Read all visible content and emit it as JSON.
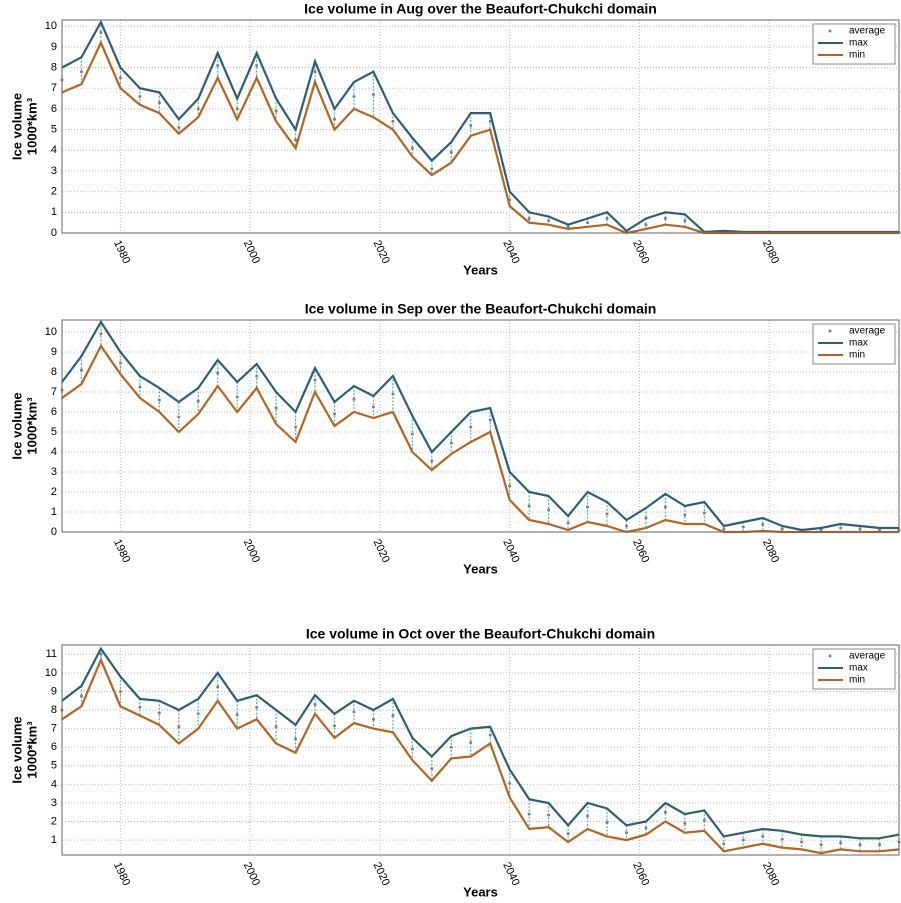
{
  "chart_data": [
    {
      "type": "line",
      "title": "Ice volume in Aug over the Beaufort-Chukchi domain",
      "xlabel": "Years",
      "ylabel": [
        "Ice volume",
        "1000*km³"
      ],
      "x": [
        1971,
        1974,
        1977,
        1980,
        1983,
        1986,
        1989,
        1992,
        1995,
        1998,
        2001,
        2004,
        2007,
        2010,
        2013,
        2016,
        2019,
        2022,
        2025,
        2028,
        2031,
        2034,
        2037,
        2040,
        2043,
        2046,
        2049,
        2052,
        2055,
        2058,
        2061,
        2064,
        2067,
        2070,
        2073,
        2076,
        2079,
        2082,
        2085,
        2088,
        2091,
        2094,
        2097,
        2100
      ],
      "series": [
        {
          "name": "average",
          "color": "#7f7f7f",
          "values": [
            7.4,
            7.8,
            9.7,
            7.5,
            6.6,
            6.3,
            5.1,
            6.0,
            8.1,
            6.0,
            8.1,
            5.9,
            4.5,
            7.8,
            5.5,
            6.6,
            6.7,
            5.4,
            4.1,
            3.1,
            3.9,
            5.2,
            5.4,
            1.6,
            0.7,
            0.6,
            0.3,
            0.5,
            0.7,
            0.05,
            0.4,
            0.7,
            0.6,
            0.02,
            0.05,
            0.02,
            0.02,
            0.02,
            0.02,
            0.02,
            0.02,
            0.02,
            0.02,
            0.02
          ]
        },
        {
          "name": "max",
          "color": "#2e5f7a",
          "values": [
            8.0,
            8.5,
            10.2,
            8.0,
            7.0,
            6.8,
            5.5,
            6.5,
            8.7,
            6.5,
            8.7,
            6.5,
            5.0,
            8.3,
            6.0,
            7.3,
            7.8,
            5.8,
            4.6,
            3.5,
            4.4,
            5.8,
            5.8,
            2.0,
            1.0,
            0.8,
            0.4,
            0.7,
            1.0,
            0.1,
            0.7,
            1.0,
            0.9,
            0.05,
            0.1,
            0.05,
            0.05,
            0.05,
            0.05,
            0.05,
            0.05,
            0.05,
            0.05,
            0.05
          ]
        },
        {
          "name": "min",
          "color": "#b5651d",
          "values": [
            6.8,
            7.2,
            9.2,
            7.0,
            6.2,
            5.8,
            4.8,
            5.6,
            7.5,
            5.5,
            7.5,
            5.4,
            4.1,
            7.3,
            5.0,
            6.0,
            5.6,
            5.0,
            3.7,
            2.8,
            3.4,
            4.7,
            5.0,
            1.3,
            0.5,
            0.4,
            0.2,
            0.3,
            0.4,
            0,
            0.2,
            0.4,
            0.3,
            0,
            0,
            0,
            0,
            0,
            0,
            0,
            0,
            0,
            0,
            0
          ]
        }
      ],
      "xlim": [
        1971,
        2100
      ],
      "xticks": [
        1980,
        2000,
        2020,
        2040,
        2060,
        2080
      ],
      "ylim": [
        0,
        10.3
      ],
      "yticks": [
        0,
        1,
        2,
        3,
        4,
        5,
        6,
        7,
        8,
        9,
        10
      ],
      "grid": true,
      "legend": "upper right"
    },
    {
      "type": "line",
      "title": "Ice volume in Sep over the Beaufort-Chukchi domain",
      "xlabel": "Years",
      "ylabel": [
        "Ice volume",
        "1000*km³"
      ],
      "x": [
        1971,
        1974,
        1977,
        1980,
        1983,
        1986,
        1989,
        1992,
        1995,
        1998,
        2001,
        2004,
        2007,
        2010,
        2013,
        2016,
        2019,
        2022,
        2025,
        2028,
        2031,
        2034,
        2037,
        2040,
        2043,
        2046,
        2049,
        2052,
        2055,
        2058,
        2061,
        2064,
        2067,
        2070,
        2073,
        2076,
        2079,
        2082,
        2085,
        2088,
        2091,
        2094,
        2097,
        2100
      ],
      "series": [
        {
          "name": "average",
          "color": "#7f7f7f",
          "values": [
            7.1,
            8.1,
            9.9,
            8.45,
            7.25,
            6.6,
            5.75,
            6.55,
            7.95,
            6.75,
            7.8,
            6.2,
            5.25,
            7.6,
            5.9,
            6.65,
            6.25,
            6.9,
            4.9,
            3.55,
            4.45,
            5.25,
            5.6,
            2.3,
            1.3,
            1.1,
            0.45,
            1.25,
            0.9,
            0.3,
            0.7,
            1.25,
            0.85,
            0.95,
            0.15,
            0.25,
            0.38,
            0.15,
            0.05,
            0.1,
            0.2,
            0.15,
            0.1,
            0.1
          ]
        },
        {
          "name": "max",
          "color": "#2e5f7a",
          "values": [
            7.5,
            8.8,
            10.5,
            9.0,
            7.8,
            7.2,
            6.5,
            7.2,
            8.6,
            7.5,
            8.4,
            7.0,
            6.0,
            8.2,
            6.5,
            7.3,
            6.8,
            7.8,
            5.8,
            4.0,
            5.0,
            6.0,
            6.2,
            3.0,
            2.0,
            1.8,
            0.8,
            2.0,
            1.5,
            0.6,
            1.2,
            1.9,
            1.3,
            1.5,
            0.3,
            0.5,
            0.7,
            0.3,
            0.1,
            0.2,
            0.4,
            0.3,
            0.2,
            0.2
          ]
        },
        {
          "name": "min",
          "color": "#b5651d",
          "values": [
            6.7,
            7.4,
            9.3,
            7.9,
            6.7,
            6.0,
            5.0,
            5.9,
            7.3,
            6.0,
            7.2,
            5.4,
            4.5,
            7.0,
            5.3,
            6.0,
            5.7,
            6.0,
            4.0,
            3.1,
            3.9,
            4.5,
            5.0,
            1.6,
            0.6,
            0.4,
            0.1,
            0.5,
            0.3,
            0,
            0.2,
            0.6,
            0.4,
            0.4,
            0,
            0,
            0.05,
            0,
            0,
            0,
            0,
            0,
            0,
            0
          ]
        }
      ],
      "xlim": [
        1971,
        2100
      ],
      "xticks": [
        1980,
        2000,
        2020,
        2040,
        2060,
        2080
      ],
      "ylim": [
        0,
        10.6
      ],
      "yticks": [
        0,
        1,
        2,
        3,
        4,
        5,
        6,
        7,
        8,
        9,
        10
      ],
      "grid": true,
      "legend": "upper right"
    },
    {
      "type": "line",
      "title": "Ice volume in Oct over the Beaufort-Chukchi domain",
      "xlabel": "Years",
      "ylabel": [
        "Ice volume",
        "1000*km³"
      ],
      "x": [
        1971,
        1974,
        1977,
        1980,
        1983,
        1986,
        1989,
        1992,
        1995,
        1998,
        2001,
        2004,
        2007,
        2010,
        2013,
        2016,
        2019,
        2022,
        2025,
        2028,
        2031,
        2034,
        2037,
        2040,
        2043,
        2046,
        2049,
        2052,
        2055,
        2058,
        2061,
        2064,
        2067,
        2070,
        2073,
        2076,
        2079,
        2082,
        2085,
        2088,
        2091,
        2094,
        2097,
        2100
      ],
      "series": [
        {
          "name": "average",
          "color": "#7f7f7f",
          "values": [
            8.0,
            8.75,
            11.0,
            9.0,
            8.15,
            7.85,
            7.1,
            7.8,
            9.25,
            7.75,
            8.15,
            7.1,
            6.45,
            8.3,
            7.15,
            7.9,
            7.5,
            7.7,
            5.9,
            4.85,
            6.0,
            6.25,
            6.65,
            4.05,
            2.4,
            2.35,
            1.35,
            2.3,
            1.95,
            1.4,
            1.65,
            2.5,
            1.9,
            2.05,
            0.8,
            1.0,
            1.2,
            1.05,
            0.9,
            0.75,
            0.85,
            0.75,
            0.75,
            0.9
          ]
        },
        {
          "name": "max",
          "color": "#2e5f7a",
          "values": [
            8.5,
            9.3,
            11.3,
            9.8,
            8.6,
            8.5,
            8.0,
            8.6,
            10.0,
            8.5,
            8.8,
            8.0,
            7.2,
            8.8,
            7.8,
            8.5,
            8.0,
            8.6,
            6.5,
            5.5,
            6.6,
            7.0,
            7.1,
            4.8,
            3.2,
            3.0,
            1.8,
            3.0,
            2.7,
            1.8,
            2.0,
            3.0,
            2.4,
            2.6,
            1.2,
            1.4,
            1.6,
            1.5,
            1.3,
            1.2,
            1.2,
            1.1,
            1.1,
            1.3
          ]
        },
        {
          "name": "min",
          "color": "#b5651d",
          "values": [
            7.5,
            8.2,
            10.7,
            8.2,
            7.7,
            7.2,
            6.2,
            7.0,
            8.5,
            7.0,
            7.5,
            6.2,
            5.7,
            7.8,
            6.5,
            7.3,
            7.0,
            6.8,
            5.3,
            4.2,
            5.4,
            5.5,
            6.2,
            3.3,
            1.6,
            1.7,
            0.9,
            1.6,
            1.2,
            1.0,
            1.3,
            2.0,
            1.4,
            1.5,
            0.4,
            0.6,
            0.8,
            0.6,
            0.5,
            0.3,
            0.5,
            0.4,
            0.4,
            0.5
          ]
        }
      ],
      "xlim": [
        1971,
        2100
      ],
      "xticks": [
        1980,
        2000,
        2020,
        2040,
        2060,
        2080
      ],
      "ylim": [
        0.2,
        11.5
      ],
      "yticks": [
        1,
        2,
        3,
        4,
        5,
        6,
        7,
        8,
        9,
        10,
        11
      ],
      "grid": true,
      "legend": "upper right"
    }
  ]
}
